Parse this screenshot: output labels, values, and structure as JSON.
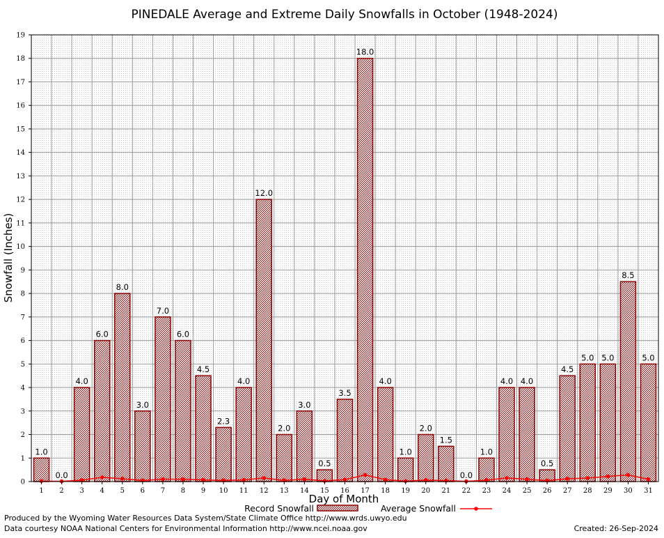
{
  "chart_data": {
    "type": "bar",
    "title": "PINEDALE Average and Extreme Daily Snowfalls in October (1948-2024)",
    "xlabel": "Day of Month",
    "ylabel": "Snowfall (Inches)",
    "ylim": [
      0,
      19
    ],
    "grid": true,
    "categories": [
      "1",
      "2",
      "3",
      "4",
      "5",
      "6",
      "7",
      "8",
      "9",
      "10",
      "11",
      "12",
      "13",
      "14",
      "15",
      "16",
      "17",
      "18",
      "19",
      "20",
      "21",
      "22",
      "23",
      "24",
      "25",
      "26",
      "27",
      "28",
      "29",
      "30",
      "31"
    ],
    "series": [
      {
        "name": "Record Snowfall",
        "kind": "bar",
        "color": "#8b0000",
        "values": [
          1.0,
          0.0,
          4.0,
          6.0,
          8.0,
          3.0,
          7.0,
          6.0,
          4.5,
          2.3,
          4.0,
          12.0,
          2.0,
          3.0,
          0.5,
          3.5,
          18.0,
          4.0,
          1.0,
          2.0,
          1.5,
          0.0,
          1.0,
          4.0,
          4.0,
          0.5,
          4.5,
          5.0,
          5.0,
          8.5,
          5.0
        ],
        "labels": [
          "1.0",
          "0.0",
          "4.0",
          "6.0",
          "8.0",
          "3.0",
          "7.0",
          "6.0",
          "4.5",
          "2.3",
          "4.0",
          "12.0",
          "2.0",
          "3.0",
          "0.5",
          "3.5",
          "18.0",
          "4.0",
          "1.0",
          "2.0",
          "1.5",
          "0.0",
          "1.0",
          "4.0",
          "4.0",
          "0.5",
          "4.5",
          "5.0",
          "5.0",
          "8.5",
          "5.0"
        ]
      },
      {
        "name": "Average Snowfall",
        "kind": "line",
        "color": "#ff0000",
        "values": [
          0.02,
          0.01,
          0.06,
          0.18,
          0.12,
          0.05,
          0.1,
          0.1,
          0.07,
          0.05,
          0.07,
          0.15,
          0.05,
          0.1,
          0.03,
          0.08,
          0.28,
          0.08,
          0.02,
          0.06,
          0.04,
          0.01,
          0.06,
          0.15,
          0.1,
          0.04,
          0.12,
          0.15,
          0.22,
          0.28,
          0.1
        ]
      }
    ],
    "yticks": [
      "0",
      "1",
      "2",
      "3",
      "4",
      "5",
      "6",
      "7",
      "8",
      "9",
      "10",
      "11",
      "12",
      "13",
      "14",
      "15",
      "16",
      "17",
      "18",
      "19"
    ],
    "legend": {
      "placement": "bottom"
    }
  },
  "footer": {
    "produced": "Produced by the Wyoming Water Resources Data System/State Climate Office http://www.wrds.uwyo.edu",
    "courtesy": "Data courtesy NOAA National Centers for Environmental Information http://www.ncei.noaa.gov",
    "created": "Created: 26-Sep-2024"
  }
}
